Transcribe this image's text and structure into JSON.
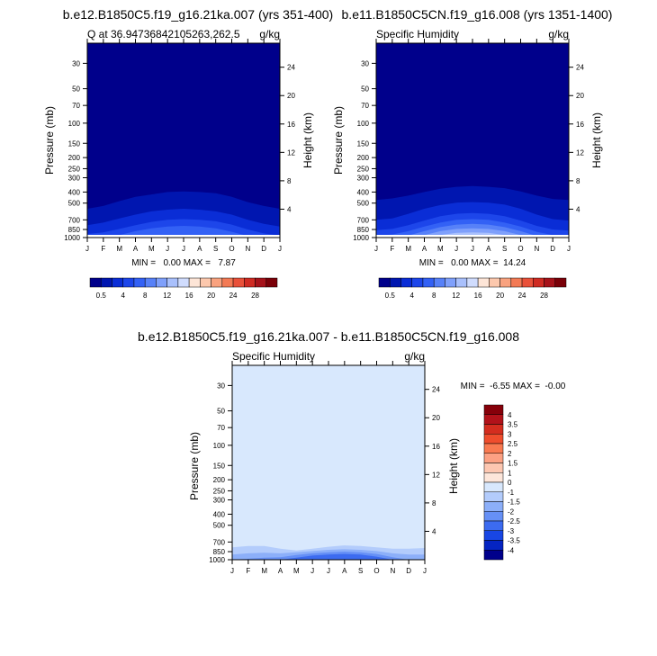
{
  "months": [
    "J",
    "F",
    "M",
    "A",
    "M",
    "J",
    "J",
    "A",
    "S",
    "O",
    "N",
    "D",
    "J"
  ],
  "panels": [
    {
      "title": "b.e12.B1850C5.f19_g16.21ka.007 (yrs 351-400)",
      "subtitle_left": "Q at 36.94736842105263,262.5",
      "subtitle_right": "g/kg",
      "ylabel": "Pressure (mb)",
      "ylabel2": "Height (km)",
      "minmax": "MIN =   0.00 MAX =   7.87",
      "colorbar_labels": [
        "0.5",
        "4",
        "8",
        "12",
        "16",
        "20",
        "24",
        "28"
      ]
    },
    {
      "title": "b.e11.B1850C5CN.f19_g16.008 (yrs 1351-1400)",
      "subtitle_left": "Specific Humidity",
      "subtitle_right": "g/kg",
      "ylabel": "Pressure (mb)",
      "ylabel2": "Height (km)",
      "minmax": "MIN =   0.00 MAX =  14.24",
      "colorbar_labels": [
        "0.5",
        "4",
        "8",
        "12",
        "16",
        "20",
        "24",
        "28"
      ]
    },
    {
      "title": "b.e12.B1850C5.f19_g16.21ka.007 - b.e11.B1850C5CN.f19_g16.008",
      "subtitle_left": "Specific Humidity",
      "subtitle_right": "g/kg",
      "ylabel": "Pressure (mb)",
      "ylabel2": "Height (km)",
      "minmax": "MIN =  -6.55 MAX =  -0.00",
      "colorbar_labels": [
        "4",
        "3.5",
        "3",
        "2.5",
        "2",
        "1.5",
        "1",
        "0",
        "-1",
        "-1.5",
        "-2",
        "-2.5",
        "-3",
        "-3.5",
        "-4"
      ]
    }
  ],
  "colors": {
    "abs_fill": [
      "#00008b",
      "#0016b0",
      "#0a2dd6",
      "#1d46ea",
      "#3361f5",
      "#5781f8",
      "#7fa0fb",
      "#a9c0fc",
      "#d0dcfd",
      "#fde5d7",
      "#fcc8ad",
      "#f9a27f",
      "#f37a55",
      "#e9513a",
      "#cf2b23",
      "#a6121a",
      "#7a0008"
    ],
    "diff_fill": [
      "#86000a",
      "#b2121a",
      "#d42d1f",
      "#ef4d2d",
      "#f97a51",
      "#fca183",
      "#fdc7b1",
      "#fde6da",
      "#d8e8fd",
      "#b3ccfc",
      "#8caff9",
      "#6690f6",
      "#3c6bf0",
      "#1846e4",
      "#0524c2",
      "#00008b"
    ]
  },
  "chart_data": [
    {
      "type": "heatmap",
      "title": "b.e12.B1850C5.f19_g16.21ka.007 (yrs 351-400)",
      "variable": "Q at 36.94736842105263,262.5",
      "units": "g/kg",
      "x": [
        "J",
        "F",
        "M",
        "A",
        "M",
        "J",
        "J",
        "A",
        "S",
        "O",
        "N",
        "D",
        "J"
      ],
      "ylabel": "Pressure (mb)",
      "y_ticks_pressure": [
        30,
        50,
        70,
        100,
        150,
        200,
        250,
        300,
        400,
        500,
        700,
        850,
        1000
      ],
      "ylim_pressure": [
        1000,
        20
      ],
      "y2label": "Height (km)",
      "y2_ticks": [
        4,
        8,
        12,
        16,
        20,
        24
      ],
      "y_scale": "log",
      "min": 0.0,
      "max": 7.87,
      "levels": [
        0.5,
        2,
        4,
        6,
        8,
        10,
        12,
        14,
        16,
        18,
        20,
        22,
        24,
        26,
        28,
        30
      ],
      "contour_bands": [
        {
          "level": 0.5,
          "pressure_top_by_month": [
            560,
            530,
            480,
            440,
            420,
            400,
            395,
            400,
            410,
            440,
            490,
            530,
            560
          ]
        },
        {
          "level": 2,
          "pressure_top_by_month": [
            780,
            740,
            680,
            630,
            590,
            570,
            560,
            570,
            590,
            630,
            700,
            760,
            800
          ]
        },
        {
          "level": 4,
          "pressure_top_by_month": [
            930,
            900,
            840,
            780,
            730,
            700,
            690,
            700,
            720,
            770,
            850,
            920,
            960
          ]
        },
        {
          "level": 6,
          "pressure_top_by_month": [
            1000,
            1000,
            950,
            880,
            830,
            800,
            790,
            800,
            830,
            890,
            970,
            1000,
            1000
          ]
        }
      ],
      "colorbar": {
        "labels": [
          "0.5",
          "4",
          "8",
          "12",
          "16",
          "20",
          "24",
          "28"
        ],
        "orientation": "horizontal"
      }
    },
    {
      "type": "heatmap",
      "title": "b.e11.B1850C5CN.f19_g16.008 (yrs 1351-1400)",
      "variable": "Specific Humidity",
      "units": "g/kg",
      "x": [
        "J",
        "F",
        "M",
        "A",
        "M",
        "J",
        "J",
        "A",
        "S",
        "O",
        "N",
        "D",
        "J"
      ],
      "ylabel": "Pressure (mb)",
      "y_ticks_pressure": [
        30,
        50,
        70,
        100,
        150,
        200,
        250,
        300,
        400,
        500,
        700,
        850,
        1000
      ],
      "ylim_pressure": [
        1000,
        20
      ],
      "y2label": "Height (km)",
      "y2_ticks": [
        4,
        8,
        12,
        16,
        20,
        24
      ],
      "y_scale": "log",
      "min": 0.0,
      "max": 14.24,
      "levels": [
        0.5,
        2,
        4,
        6,
        8,
        10,
        12,
        14,
        16,
        18,
        20,
        22,
        24,
        26,
        28,
        30
      ],
      "contour_bands": [
        {
          "level": 0.5,
          "pressure_top_by_month": [
            470,
            455,
            430,
            400,
            375,
            360,
            355,
            360,
            370,
            395,
            430,
            460,
            470
          ]
        },
        {
          "level": 2,
          "pressure_top_by_month": [
            700,
            680,
            620,
            560,
            520,
            495,
            490,
            495,
            515,
            560,
            630,
            690,
            710
          ]
        },
        {
          "level": 4,
          "pressure_top_by_month": [
            860,
            840,
            780,
            710,
            650,
            620,
            610,
            620,
            650,
            710,
            790,
            850,
            870
          ]
        },
        {
          "level": 6,
          "pressure_top_by_month": [
            960,
            940,
            880,
            800,
            740,
            700,
            690,
            700,
            740,
            800,
            890,
            950,
            970
          ]
        },
        {
          "level": 8,
          "pressure_top_by_month": [
            1000,
            1000,
            960,
            880,
            810,
            770,
            760,
            770,
            810,
            880,
            970,
            1000,
            1000
          ]
        },
        {
          "level": 10,
          "pressure_top_by_month": [
            1000,
            1000,
            1000,
            950,
            880,
            840,
            830,
            840,
            880,
            950,
            1000,
            1000,
            1000
          ]
        },
        {
          "level": 12,
          "pressure_top_by_month": [
            1000,
            1000,
            1000,
            1000,
            950,
            910,
            900,
            910,
            950,
            1000,
            1000,
            1000,
            1000
          ]
        }
      ],
      "colorbar": {
        "labels": [
          "0.5",
          "4",
          "8",
          "12",
          "16",
          "20",
          "24",
          "28"
        ],
        "orientation": "horizontal"
      }
    },
    {
      "type": "heatmap",
      "title": "b.e12.B1850C5.f19_g16.21ka.007 - b.e11.B1850C5CN.f19_g16.008",
      "variable": "Specific Humidity",
      "units": "g/kg",
      "x": [
        "J",
        "F",
        "M",
        "A",
        "M",
        "J",
        "J",
        "A",
        "S",
        "O",
        "N",
        "D",
        "J"
      ],
      "ylabel": "Pressure (mb)",
      "y_ticks_pressure": [
        30,
        50,
        70,
        100,
        150,
        200,
        250,
        300,
        400,
        500,
        700,
        850,
        1000
      ],
      "ylim_pressure": [
        1000,
        20
      ],
      "y2label": "Height (km)",
      "y2_ticks": [
        4,
        8,
        12,
        16,
        20,
        24
      ],
      "y_scale": "log",
      "min": -6.55,
      "max": -0.0,
      "levels": [
        -4,
        -3.5,
        -3,
        -2.5,
        -2,
        -1.5,
        -1,
        0,
        1,
        1.5,
        2,
        2.5,
        3,
        3.5,
        4
      ],
      "contour_bands": [
        {
          "level": -1,
          "pressure_top_by_month": [
            780,
            760,
            760,
            800,
            830,
            800,
            770,
            750,
            760,
            780,
            800,
            800,
            790
          ]
        },
        {
          "level": -2,
          "pressure_top_by_month": [
            900,
            880,
            870,
            880,
            860,
            840,
            820,
            810,
            820,
            840,
            880,
            900,
            900
          ]
        },
        {
          "level": -3,
          "pressure_top_by_month": [
            1000,
            980,
            960,
            950,
            910,
            880,
            860,
            850,
            860,
            890,
            950,
            1000,
            1000
          ]
        },
        {
          "level": -4,
          "pressure_top_by_month": [
            1000,
            1000,
            1000,
            1000,
            960,
            920,
            900,
            890,
            900,
            940,
            1000,
            1000,
            1000
          ]
        }
      ],
      "colorbar": {
        "labels": [
          "4",
          "3.5",
          "3",
          "2.5",
          "2",
          "1.5",
          "1",
          "0",
          "-1",
          "-1.5",
          "-2",
          "-2.5",
          "-3",
          "-3.5",
          "-4"
        ],
        "orientation": "vertical"
      }
    }
  ]
}
